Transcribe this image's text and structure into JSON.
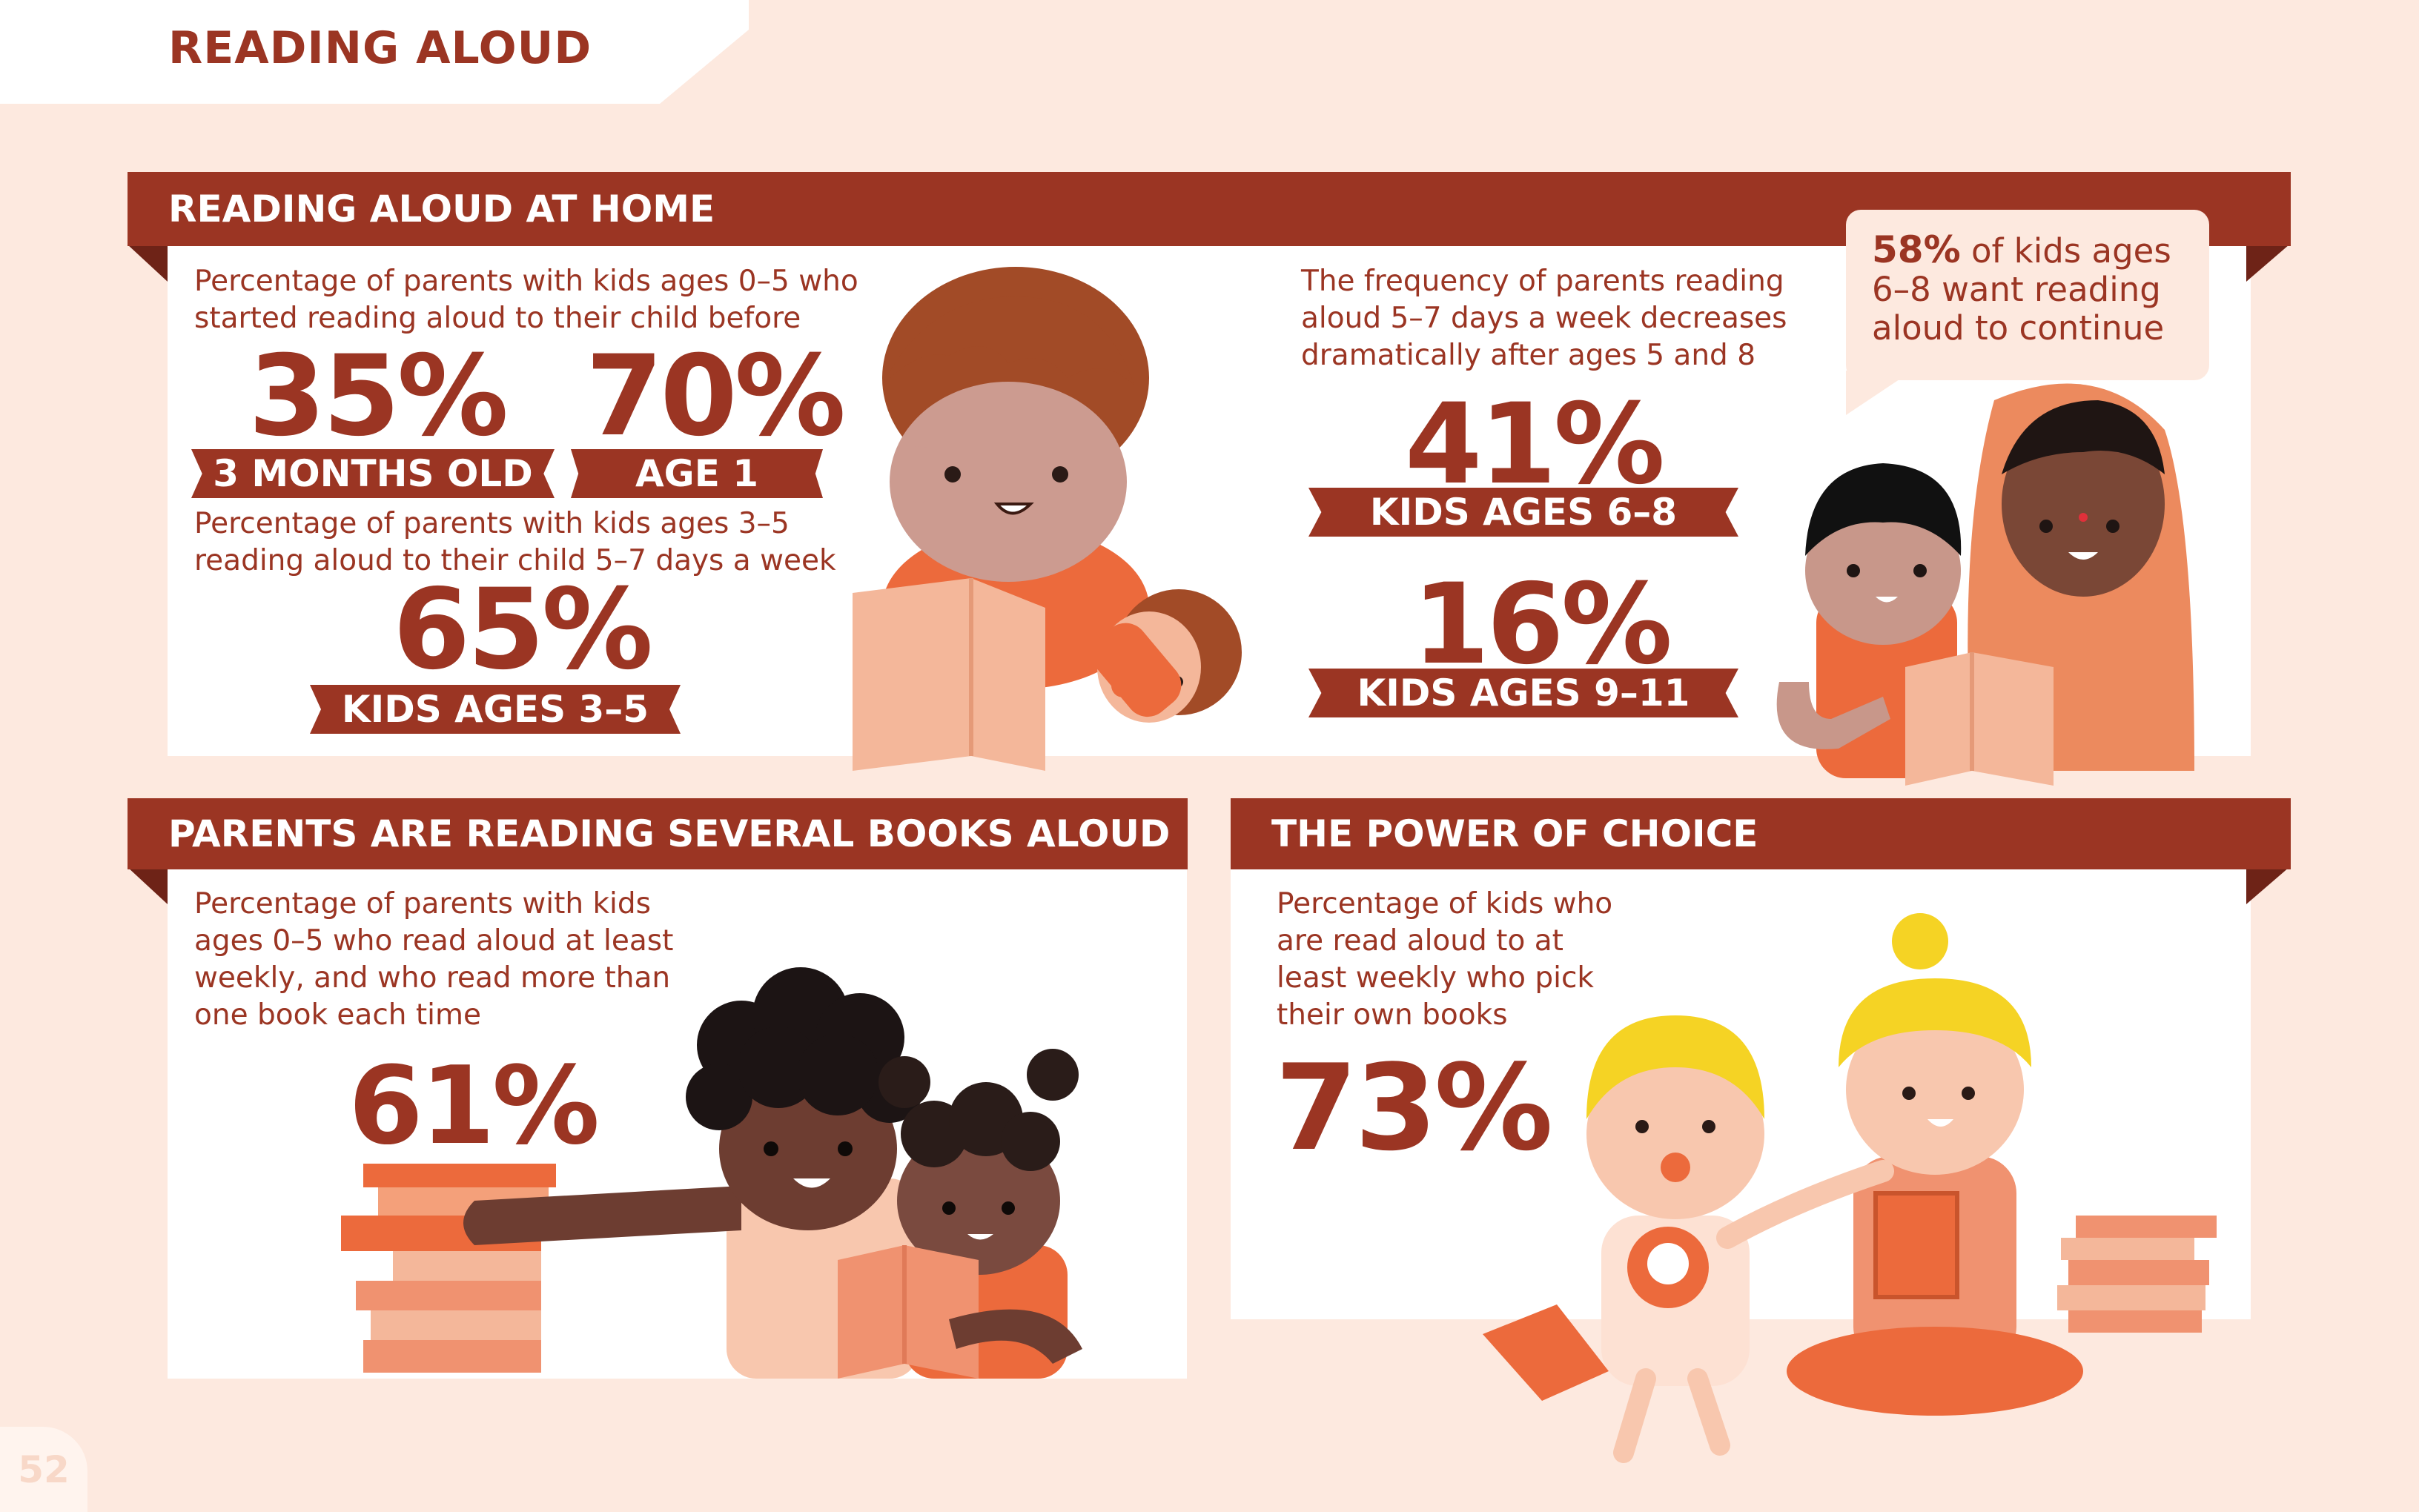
{
  "page": {
    "title": "READING ALOUD",
    "number": "52"
  },
  "home": {
    "header": "READING ALOUD AT HOME",
    "start_desc_line1": "Percentage of parents with kids ages 0–5 who",
    "start_desc_line2": "started reading aloud to their child before",
    "stat1_value": "35%",
    "stat1_label": "3 MONTHS OLD",
    "stat2_value": "70%",
    "stat2_label": "AGE 1",
    "freq_desc_line1": "Percentage of parents with kids ages 3–5",
    "freq_desc_line2": "reading aloud to their child 5–7 days a week",
    "stat3_value": "65%",
    "stat3_label": "KIDS AGES 3–5",
    "decrease_desc_line1": "The frequency of parents reading",
    "decrease_desc_line2": "aloud 5–7 days a week decreases",
    "decrease_desc_line3": "dramatically after ages 5 and 8",
    "stat4_value": "41%",
    "stat4_label": "KIDS AGES 6–8",
    "stat5_value": "16%",
    "stat5_label": "KIDS AGES 9–11",
    "bubble_value": "58%",
    "bubble_text_line1": " of kids ages",
    "bubble_text_line2": "6–8 want reading",
    "bubble_text_line3": "aloud to continue"
  },
  "several": {
    "header": "PARENTS ARE READING SEVERAL BOOKS ALOUD",
    "desc_line1": "Percentage of parents with kids",
    "desc_line2": "ages 0–5 who read aloud at least",
    "desc_line3": "weekly, and who read more than",
    "desc_line4": "one book each time",
    "stat_value": "61%"
  },
  "choice": {
    "header": "THE POWER OF CHOICE",
    "desc_line1": "Percentage of kids who",
    "desc_line2": "are read aloud to at",
    "desc_line3": "least weekly who pick",
    "desc_line4": "their own books",
    "stat_value": "73%"
  },
  "colors": {
    "background": "#fde9df",
    "panel": "#ffffff",
    "accent": "#9b3523",
    "orange": "#ec6a3c",
    "peach": "#f4b79a"
  }
}
